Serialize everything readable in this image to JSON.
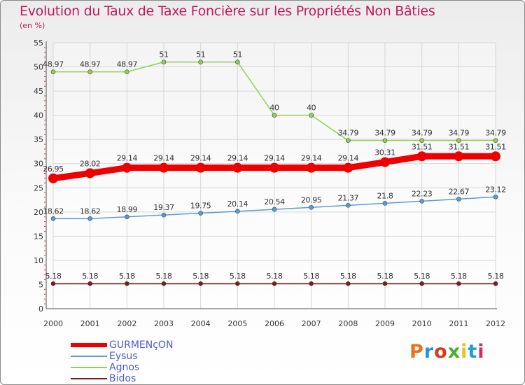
{
  "header": {
    "title": "Evolution du Taux de Taxe Foncière sur les Propriétés Non Bâties",
    "unit": "(en %)"
  },
  "logo": {
    "text": "Proxiti",
    "letter_colors": [
      "#e8721c",
      "#2d8fd8",
      "#d63a1e",
      "#4caf2a",
      "#e8c020",
      "#1e9ed8",
      "#d42a6a"
    ]
  },
  "chart_data": {
    "type": "line",
    "title": "Evolution du Taux de Taxe Foncière sur les Propriétés Non Bâties",
    "ylabel": "(en %)",
    "xlabel": "",
    "ylim": [
      0,
      55
    ],
    "yticks": [
      0,
      5,
      10,
      15,
      20,
      25,
      30,
      35,
      40,
      45,
      50,
      55
    ],
    "x": [
      "2000",
      "2001",
      "2002",
      "2003",
      "2004",
      "2005",
      "2006",
      "2007",
      "2008",
      "2009",
      "2010",
      "2011",
      "2012"
    ],
    "grid": true,
    "legend_position": "bottom-left",
    "series": [
      {
        "name": "GURMENçON",
        "color": "#ee0000",
        "emphasis": true,
        "values": [
          26.95,
          28.02,
          29.14,
          29.14,
          29.14,
          29.14,
          29.14,
          29.14,
          29.14,
          30.31,
          31.51,
          31.51,
          31.51
        ],
        "labels": [
          "26.95",
          "28.02",
          "29.14",
          "29.14",
          "29.14",
          "29.14",
          "29.14",
          "29.14",
          "29.14",
          "30.31",
          "31.51",
          "31.51",
          "31.51"
        ]
      },
      {
        "name": "Eysus",
        "color": "#5b9bd5",
        "emphasis": false,
        "values": [
          18.62,
          18.62,
          18.99,
          19.37,
          19.75,
          20.14,
          20.54,
          20.95,
          21.37,
          21.8,
          22.23,
          22.67,
          23.12
        ],
        "labels": [
          "18.62",
          "18.62",
          "18.99",
          "19.37",
          "19.75",
          "20.14",
          "20.54",
          "20.95",
          "21.37",
          "21.8",
          "22.23",
          "22.67",
          "23.12"
        ]
      },
      {
        "name": "Agnos",
        "color": "#8fd158",
        "emphasis": false,
        "values": [
          48.97,
          48.97,
          48.97,
          51,
          51,
          51,
          40,
          40,
          34.79,
          34.79,
          34.79,
          34.79,
          34.79
        ],
        "labels": [
          "48.97",
          "48.97",
          "48.97",
          "51",
          "51",
          "51",
          "40",
          "40",
          "34.79",
          "34.79",
          "34.79",
          "34.79",
          "34.79"
        ]
      },
      {
        "name": "Bidos",
        "color": "#7b1c1c",
        "emphasis": false,
        "values": [
          5.18,
          5.18,
          5.18,
          5.18,
          5.18,
          5.18,
          5.18,
          5.18,
          5.18,
          5.18,
          5.18,
          5.18,
          5.18
        ],
        "labels": [
          "5.18",
          "5.18",
          "5.18",
          "5.18",
          "5.18",
          "5.18",
          "5.18",
          "5.18",
          "5.18",
          "5.18",
          "5.18",
          "5.18",
          "5.18"
        ]
      }
    ]
  }
}
